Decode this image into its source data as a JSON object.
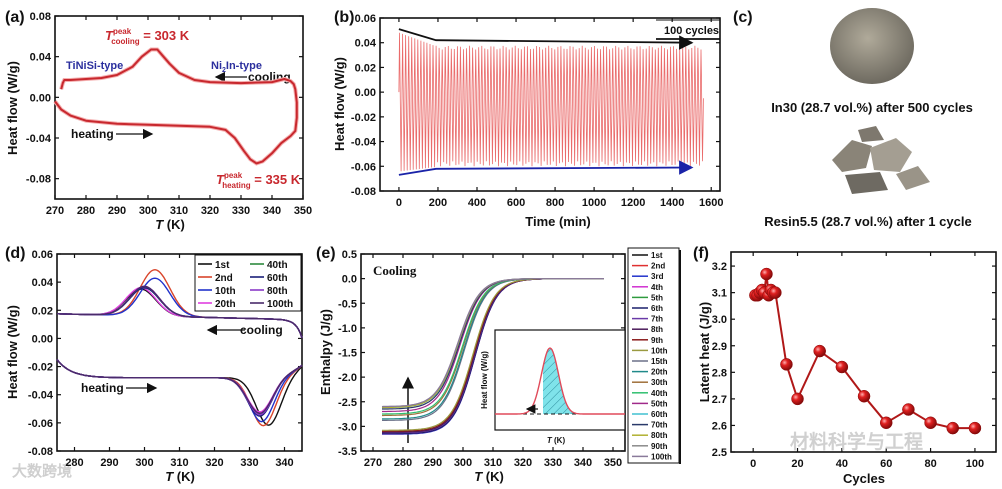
{
  "colors": {
    "curve_red": "#c8282e",
    "blue_label": "#2b2f9e",
    "arrow_blue": "#1a23a8",
    "spike_red": "#e85b5b",
    "hatch_fill": "#7fe3ea"
  },
  "watermarks": {
    "weibo": "大数跨境",
    "wechat": "材料科学与工程"
  },
  "chart_data": [
    {
      "id": "a",
      "panel_label": "(a)",
      "type": "line",
      "xlabel_italic": "T",
      "xlabel_unit": " (K)",
      "ylabel": "Heat flow (W/g)",
      "xlim": [
        270,
        350
      ],
      "ylim": [
        -0.1,
        0.08
      ],
      "xticks": [
        270,
        280,
        290,
        300,
        310,
        320,
        330,
        340,
        350
      ],
      "yticks": [
        -0.08,
        -0.04,
        0.0,
        0.04,
        0.08
      ],
      "annotations": {
        "peak_cool_T": "T",
        "peak_cool_sup": "peak",
        "peak_cool_sub": "cooling",
        "peak_cool_val": " = 303 K",
        "peak_heat_T": "T",
        "peak_heat_sup": "peak",
        "peak_heat_sub": "heating",
        "peak_heat_val": " = 335 K",
        "phase_low": "TiNiSi-type",
        "phase_high_a": "Ni",
        "phase_high_sub": "2",
        "phase_high_b": "In-type",
        "cooling": "cooling",
        "heating": "heating"
      },
      "series": [
        {
          "name": "DSC loop",
          "x": [
            270,
            272,
            275,
            280,
            290,
            300,
            310,
            320,
            325,
            328,
            331,
            333,
            335,
            337,
            340,
            343,
            346,
            347.5,
            348,
            348,
            347.5,
            347,
            346,
            344,
            340,
            330,
            320,
            315,
            310,
            307,
            305,
            303,
            301,
            298,
            295,
            290,
            285,
            280,
            275,
            273,
            272.5,
            272
          ],
          "y": [
            -0.004,
            -0.012,
            -0.018,
            -0.023,
            -0.026,
            -0.027,
            -0.028,
            -0.029,
            -0.032,
            -0.04,
            -0.053,
            -0.061,
            -0.065,
            -0.063,
            -0.055,
            -0.045,
            -0.038,
            -0.033,
            -0.02,
            -0.005,
            0.008,
            0.013,
            0.016,
            0.018,
            0.015,
            0.014,
            0.015,
            0.017,
            0.024,
            0.033,
            0.04,
            0.047,
            0.047,
            0.04,
            0.03,
            0.022,
            0.019,
            0.018,
            0.017,
            0.017,
            0.014,
            0.008
          ]
        }
      ]
    },
    {
      "id": "b",
      "panel_label": "(b)",
      "type": "line",
      "xlabel": "Time (min)",
      "ylabel": "Heat flow (W/g)",
      "xlim": [
        -97,
        1645
      ],
      "ylim": [
        -0.08,
        0.06
      ],
      "xticks": [
        0,
        200,
        400,
        600,
        800,
        1000,
        1200,
        1400,
        1600
      ],
      "yticks": [
        -0.08,
        -0.06,
        -0.04,
        -0.02,
        0.0,
        0.02,
        0.04,
        0.06
      ],
      "cycles": 100,
      "duration_min": 1560,
      "legend_text": "100 cycles",
      "upper_envelope": {
        "x": [
          0,
          190,
          1500
        ],
        "y": [
          0.051,
          0.042,
          0.04
        ]
      },
      "lower_envelope": {
        "x": [
          0,
          190,
          1500
        ],
        "y": [
          -0.067,
          -0.062,
          -0.061
        ]
      }
    },
    {
      "id": "c",
      "panel_label": "(c)",
      "type": "image",
      "caption_top": "In30 (28.7 vol.%) after 500 cycles",
      "caption_bottom": "Resin5.5 (28.7 vol.%) after 1 cycle"
    },
    {
      "id": "d",
      "panel_label": "(d)",
      "type": "line",
      "xlabel_italic": "T",
      "xlabel_unit": " (K)",
      "ylabel": "Heat flow (W/g)",
      "xlim": [
        275,
        345
      ],
      "ylim": [
        -0.08,
        0.06
      ],
      "xticks": [
        280,
        290,
        300,
        310,
        320,
        330,
        340
      ],
      "yticks": [
        -0.08,
        -0.06,
        -0.04,
        -0.02,
        0.0,
        0.02,
        0.04,
        0.06
      ],
      "annotations": {
        "cooling": "cooling",
        "heating": "heating"
      },
      "series": [
        {
          "name": "1st",
          "color": "#111111",
          "cool_peak": 0.034,
          "cool_T": 299,
          "heat_peak": -0.065,
          "heat_T": 335.5
        },
        {
          "name": "2nd",
          "color": "#d9452b",
          "cool_peak": 0.048,
          "cool_T": 303,
          "heat_peak": -0.065,
          "heat_T": 334
        },
        {
          "name": "10th",
          "color": "#2233cc",
          "cool_peak": 0.042,
          "cool_T": 303,
          "heat_peak": -0.062,
          "heat_T": 333.5
        },
        {
          "name": "20th",
          "color": "#e040e0",
          "cool_peak": 0.035,
          "cool_T": 299,
          "heat_peak": -0.055,
          "heat_T": 333
        },
        {
          "name": "40th",
          "color": "#2e8b3e",
          "cool_peak": 0.035,
          "cool_T": 300,
          "heat_peak": -0.057,
          "heat_T": 333
        },
        {
          "name": "60th",
          "color": "#1a1f7a",
          "cool_peak": 0.035,
          "cool_T": 300,
          "heat_peak": -0.058,
          "heat_T": 333
        },
        {
          "name": "80th",
          "color": "#8a3ac8",
          "cool_peak": 0.036,
          "cool_T": 300,
          "heat_peak": -0.057,
          "heat_T": 333
        },
        {
          "name": "100th",
          "color": "#4a2a6a",
          "cool_peak": 0.036,
          "cool_T": 300,
          "heat_peak": -0.056,
          "heat_T": 333
        }
      ]
    },
    {
      "id": "e",
      "panel_label": "(e)",
      "type": "line",
      "title": "Cooling",
      "xlabel_italic": "T",
      "xlabel_unit": " (K)",
      "ylabel": "Enthalpy (J/g)",
      "xlim": [
        266,
        354
      ],
      "ylim": [
        -3.5,
        0.5
      ],
      "xticks": [
        270,
        280,
        290,
        300,
        310,
        320,
        330,
        340,
        350
      ],
      "yticks": [
        -3.5,
        -3.0,
        -2.5,
        -2.0,
        -1.5,
        -1.0,
        -0.5,
        0.0,
        0.5
      ],
      "inset": {
        "ylabel": "Heat flow (W/g)",
        "xlabel_italic": "T",
        "xlabel_unit": " (K)"
      },
      "series": [
        {
          "name": "1st",
          "color": "#111111",
          "final": -3.15,
          "mid_T": 303.5
        },
        {
          "name": "2nd",
          "color": "#e03030",
          "final": -3.14,
          "mid_T": 304
        },
        {
          "name": "3rd",
          "color": "#2233cc",
          "final": -3.16,
          "mid_T": 304
        },
        {
          "name": "4th",
          "color": "#d030d0",
          "final": -3.15,
          "mid_T": 304
        },
        {
          "name": "5th",
          "color": "#2e9b3e",
          "final": -3.12,
          "mid_T": 303.8
        },
        {
          "name": "6th",
          "color": "#1a1f6a",
          "final": -3.15,
          "mid_T": 304
        },
        {
          "name": "7th",
          "color": "#6a3aa8",
          "final": -3.13,
          "mid_T": 303.8
        },
        {
          "name": "8th",
          "color": "#4a1a5a",
          "final": -3.12,
          "mid_T": 303.7
        },
        {
          "name": "9th",
          "color": "#8a1a1a",
          "final": -3.1,
          "mid_T": 303.5
        },
        {
          "name": "10th",
          "color": "#9a9a40",
          "final": -3.08,
          "mid_T": 303.3
        },
        {
          "name": "15th",
          "color": "#6a7088",
          "final": -2.88,
          "mid_T": 300.5
        },
        {
          "name": "20th",
          "color": "#208a8a",
          "final": -2.85,
          "mid_T": 300.3
        },
        {
          "name": "30th",
          "color": "#a0703a",
          "final": -2.78,
          "mid_T": 300
        },
        {
          "name": "40th",
          "color": "#30c070",
          "final": -2.75,
          "mid_T": 299.8
        },
        {
          "name": "50th",
          "color": "#a02a8a",
          "final": -2.7,
          "mid_T": 299
        },
        {
          "name": "60th",
          "color": "#40c0d0",
          "final": -2.62,
          "mid_T": 298.6
        },
        {
          "name": "70th",
          "color": "#2a3a6a",
          "final": -2.65,
          "mid_T": 298.8
        },
        {
          "name": "80th",
          "color": "#b0b030",
          "final": -2.62,
          "mid_T": 298.5
        },
        {
          "name": "90th",
          "color": "#8a8a8a",
          "final": -2.6,
          "mid_T": 298.4
        },
        {
          "name": "100th",
          "color": "#8a7a9a",
          "final": -2.6,
          "mid_T": 298.3
        }
      ]
    },
    {
      "id": "f",
      "panel_label": "(f)",
      "type": "scatter",
      "xlabel": "Cycles",
      "ylabel": "Latent heat (J/g)",
      "xlim": [
        -10,
        109.5
      ],
      "ylim": [
        2.5,
        3.253
      ],
      "xticks": [
        0,
        20,
        40,
        60,
        80,
        100
      ],
      "yticks": [
        2.5,
        2.6,
        2.7,
        2.8,
        2.9,
        3.0,
        3.1,
        3.2
      ],
      "x": [
        1,
        2,
        3,
        4,
        5,
        6,
        7,
        8,
        9,
        10,
        15,
        20,
        30,
        40,
        50,
        60,
        70,
        80,
        90,
        100
      ],
      "y": [
        3.09,
        3.09,
        3.1,
        3.11,
        3.1,
        3.17,
        3.09,
        3.11,
        3.1,
        3.1,
        2.83,
        2.7,
        2.88,
        2.82,
        2.71,
        2.61,
        2.66,
        2.61,
        2.59,
        2.59
      ]
    }
  ]
}
